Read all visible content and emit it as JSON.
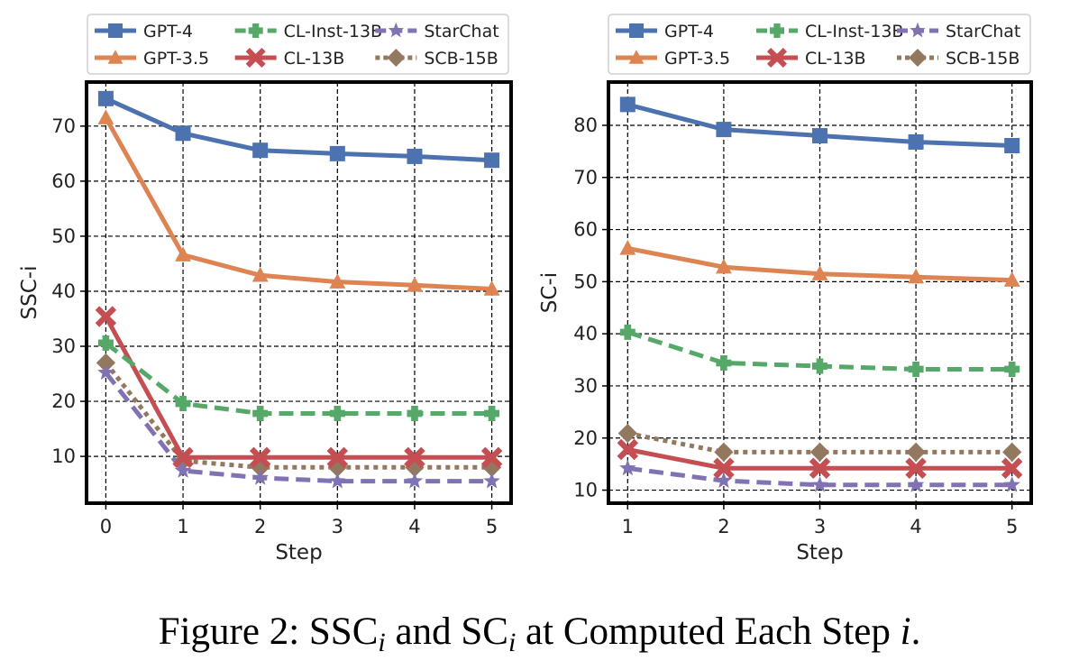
{
  "caption": {
    "prefix": "Figure 2: SSC",
    "sub1": "i",
    "mid": " and SC",
    "sub2": "i",
    "after": " at Computed Each Step ",
    "var": "i",
    "end": "."
  },
  "series_style": [
    {
      "name": "GPT-4",
      "color": "#4c72b0",
      "marker": "square",
      "dash": "solid"
    },
    {
      "name": "GPT-3.5",
      "color": "#dd8452",
      "marker": "triangle",
      "dash": "solid"
    },
    {
      "name": "CL-Inst-13B",
      "color": "#55a868",
      "marker": "plus",
      "dash": "dashed"
    },
    {
      "name": "CL-13B",
      "color": "#c44e52",
      "marker": "x",
      "dash": "solid"
    },
    {
      "name": "StarChat",
      "color": "#8172b3",
      "marker": "star",
      "dash": "dashed"
    },
    {
      "name": "SCB-15B",
      "color": "#937860",
      "marker": "diamond",
      "dash": "dotted"
    }
  ],
  "chart_data": [
    {
      "type": "line",
      "title": "",
      "xlabel": "Step",
      "ylabel": "SSC-i",
      "x": [
        0,
        1,
        2,
        3,
        4,
        5
      ],
      "xticks": [
        "0",
        "1",
        "2",
        "3",
        "4",
        "5"
      ],
      "yticks": [
        "10",
        "20",
        "30",
        "40",
        "50",
        "60",
        "70"
      ],
      "ylim": [
        1.5,
        78
      ],
      "xlim": [
        -0.25,
        5.25
      ],
      "grid": true,
      "legend": "top",
      "series": [
        {
          "name": "GPT-4",
          "values": [
            75,
            68.7,
            65.6,
            65.0,
            64.5,
            63.8
          ]
        },
        {
          "name": "GPT-3.5",
          "values": [
            71.5,
            46.6,
            42.9,
            41.7,
            41.1,
            40.4
          ]
        },
        {
          "name": "CL-Inst-13B",
          "values": [
            30.6,
            19.6,
            17.8,
            17.8,
            17.8,
            17.8
          ]
        },
        {
          "name": "CL-13B",
          "values": [
            35.4,
            9.8,
            9.8,
            9.8,
            9.8,
            9.8
          ]
        },
        {
          "name": "StarChat",
          "values": [
            25.2,
            7.4,
            6.1,
            5.5,
            5.5,
            5.5
          ]
        },
        {
          "name": "SCB-15B",
          "values": [
            27.0,
            9.2,
            8.0,
            8.0,
            8.0,
            8.0
          ]
        }
      ]
    },
    {
      "type": "line",
      "title": "",
      "xlabel": "Step",
      "ylabel": "SC-i",
      "x": [
        1,
        2,
        3,
        4,
        5
      ],
      "xticks": [
        "1",
        "2",
        "3",
        "4",
        "5"
      ],
      "yticks": [
        "10",
        "20",
        "30",
        "40",
        "50",
        "60",
        "70",
        "80"
      ],
      "ylim": [
        7.5,
        88.3
      ],
      "xlim": [
        0.8,
        5.2
      ],
      "grid": true,
      "legend": "top",
      "series": [
        {
          "name": "GPT-4",
          "values": [
            84.0,
            79.2,
            78.0,
            76.8,
            76.1
          ]
        },
        {
          "name": "GPT-3.5",
          "values": [
            56.4,
            52.8,
            51.5,
            50.9,
            50.3
          ]
        },
        {
          "name": "CL-Inst-13B",
          "values": [
            40.3,
            34.4,
            33.8,
            33.2,
            33.2
          ]
        },
        {
          "name": "CL-13B",
          "values": [
            17.8,
            14.2,
            14.2,
            14.2,
            14.2
          ]
        },
        {
          "name": "StarChat",
          "values": [
            14.2,
            11.8,
            11.0,
            11.0,
            11.0
          ]
        },
        {
          "name": "SCB-15B",
          "values": [
            20.9,
            17.3,
            17.3,
            17.3,
            17.3
          ]
        }
      ]
    }
  ]
}
